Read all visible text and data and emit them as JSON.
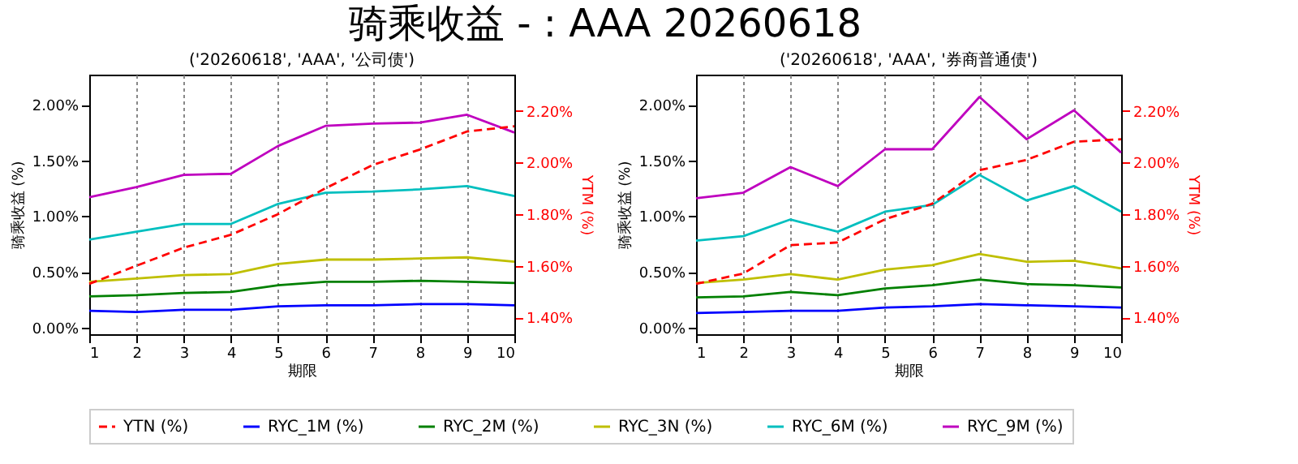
{
  "chart_data": [
    {
      "type": "line",
      "annotations": [
        "骑乘收益 - : AAA 20260618"
      ],
      "title": "('20260618', 'AAA', '公司债')",
      "xlabel": "期限",
      "ylabel": "骑乘收益 (%)",
      "y2label": "YTM (%)",
      "grid": "x",
      "legend": "bottom",
      "x": [
        1,
        2,
        3,
        4,
        5,
        6,
        7,
        8,
        9,
        10
      ],
      "xlim": [
        1,
        10
      ],
      "xticks": [
        1,
        2,
        3,
        4,
        5,
        6,
        7,
        8,
        9,
        10
      ],
      "ylim": [
        -0.06,
        2.27
      ],
      "yticks": [
        {
          "value": 0,
          "label": "0.00%"
        },
        {
          "value": 0.5,
          "label": "0.50%"
        },
        {
          "value": 1,
          "label": "1.00%"
        },
        {
          "value": 1.5,
          "label": "1.50%"
        },
        {
          "value": 2,
          "label": "2.00%"
        }
      ],
      "y2lim": [
        1.335,
        2.34
      ],
      "y2ticks": [
        {
          "value": 1.4,
          "label": "1.40%"
        },
        {
          "value": 1.6,
          "label": "1.60%"
        },
        {
          "value": 1.8,
          "label": "1.80%"
        },
        {
          "value": 2.0,
          "label": "2.00%"
        },
        {
          "value": 2.2,
          "label": "2.20%"
        }
      ],
      "series": [
        {
          "name": "YTN (%)",
          "color": "#ff0000",
          "axis": "y2",
          "line_style": "dashed",
          "values": [
            1.53,
            1.6,
            1.67,
            1.72,
            1.8,
            1.9,
            1.99,
            2.05,
            2.12,
            2.14
          ]
        },
        {
          "name": "RYC_1M (%)",
          "color": "#0000ff",
          "values": [
            0.15,
            0.14,
            0.16,
            0.16,
            0.19,
            0.2,
            0.2,
            0.21,
            0.21,
            0.2
          ]
        },
        {
          "name": "RYC_2M (%)",
          "color": "#008000",
          "values": [
            0.28,
            0.29,
            0.31,
            0.32,
            0.38,
            0.41,
            0.41,
            0.42,
            0.41,
            0.4
          ]
        },
        {
          "name": "RYC_3N (%)",
          "color": "#bfbf00",
          "values": [
            0.41,
            0.44,
            0.47,
            0.48,
            0.57,
            0.61,
            0.61,
            0.62,
            0.63,
            0.59
          ]
        },
        {
          "name": "RYC_6M (%)",
          "color": "#00bfbf",
          "values": [
            0.79,
            0.86,
            0.93,
            0.93,
            1.11,
            1.21,
            1.22,
            1.24,
            1.27,
            1.18
          ]
        },
        {
          "name": "RYC_9M (%)",
          "color": "#bf00bf",
          "values": [
            1.17,
            1.26,
            1.37,
            1.38,
            1.63,
            1.81,
            1.83,
            1.84,
            1.91,
            1.75
          ]
        }
      ]
    },
    {
      "type": "line",
      "title": "('20260618', 'AAA', '券商普通债')",
      "xlabel": "期限",
      "ylabel": "骑乘收益 (%)",
      "y2label": "YTM (%)",
      "grid": "x",
      "legend": "bottom",
      "x": [
        1,
        2,
        3,
        4,
        5,
        6,
        7,
        8,
        9,
        10
      ],
      "xlim": [
        1,
        10
      ],
      "xticks": [
        1,
        2,
        3,
        4,
        5,
        6,
        7,
        8,
        9,
        10
      ],
      "ylim": [
        -0.06,
        2.27
      ],
      "yticks": [
        {
          "value": 0,
          "label": "0.00%"
        },
        {
          "value": 0.5,
          "label": "0.50%"
        },
        {
          "value": 1,
          "label": "1.00%"
        },
        {
          "value": 1.5,
          "label": "1.50%"
        },
        {
          "value": 2,
          "label": "2.00%"
        }
      ],
      "y2lim": [
        1.335,
        2.34
      ],
      "y2ticks": [
        {
          "value": 1.4,
          "label": "1.40%"
        },
        {
          "value": 1.6,
          "label": "1.60%"
        },
        {
          "value": 1.8,
          "label": "1.80%"
        },
        {
          "value": 2.0,
          "label": "2.00%"
        },
        {
          "value": 2.2,
          "label": "2.20%"
        }
      ],
      "series": [
        {
          "name": "YTN (%)",
          "color": "#ff0000",
          "axis": "y2",
          "line_style": "dashed",
          "values": [
            1.53,
            1.57,
            1.68,
            1.69,
            1.78,
            1.84,
            1.97,
            2.01,
            2.08,
            2.09
          ]
        },
        {
          "name": "RYC_1M (%)",
          "color": "#0000ff",
          "values": [
            0.13,
            0.14,
            0.15,
            0.15,
            0.18,
            0.19,
            0.21,
            0.2,
            0.19,
            0.18
          ]
        },
        {
          "name": "RYC_2M (%)",
          "color": "#008000",
          "values": [
            0.27,
            0.28,
            0.32,
            0.29,
            0.35,
            0.38,
            0.43,
            0.39,
            0.38,
            0.36
          ]
        },
        {
          "name": "RYC_3N (%)",
          "color": "#bfbf00",
          "values": [
            0.4,
            0.43,
            0.48,
            0.43,
            0.52,
            0.56,
            0.66,
            0.59,
            0.6,
            0.53
          ]
        },
        {
          "name": "RYC_6M (%)",
          "color": "#00bfbf",
          "values": [
            0.78,
            0.82,
            0.97,
            0.86,
            1.04,
            1.1,
            1.37,
            1.14,
            1.27,
            1.04
          ]
        },
        {
          "name": "RYC_9M (%)",
          "color": "#bf00bf",
          "values": [
            1.16,
            1.21,
            1.44,
            1.27,
            1.6,
            1.6,
            2.07,
            1.69,
            1.95,
            1.57
          ]
        }
      ]
    }
  ]
}
